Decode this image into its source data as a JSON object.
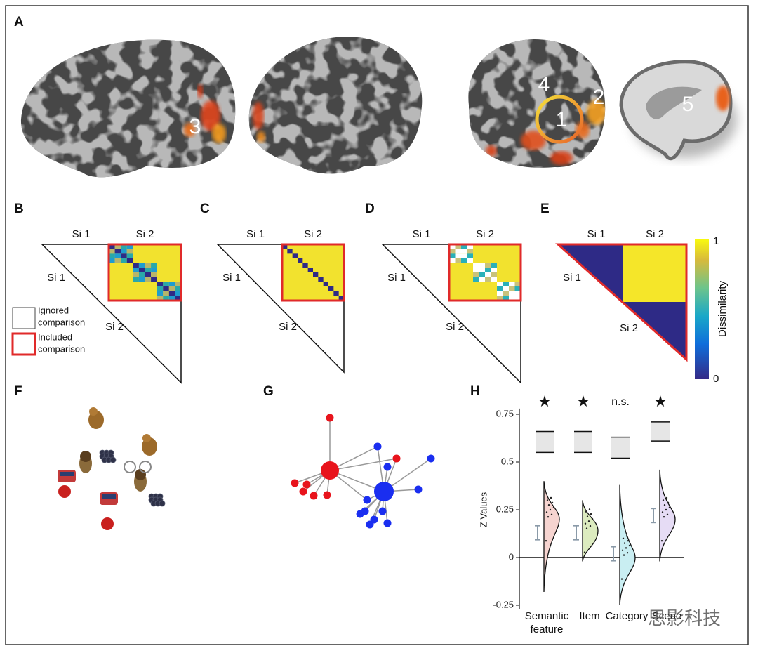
{
  "panels": {
    "A": {
      "letter": "A",
      "labels": [
        "3",
        "4",
        "1",
        "2",
        "5"
      ]
    },
    "B": {
      "letter": "B",
      "top": [
        "Si 1",
        "Si 2"
      ],
      "left": [
        "Si 1",
        "Si 2"
      ]
    },
    "C": {
      "letter": "C",
      "top": [
        "Si 1",
        "Si 2"
      ],
      "left": [
        "Si 1",
        "Si 2"
      ]
    },
    "D": {
      "letter": "D",
      "top": [
        "Si 1",
        "Si 2"
      ],
      "left": [
        "Si 1",
        "Si 2"
      ]
    },
    "E": {
      "letter": "E",
      "top": [
        "Si 1",
        "Si 2"
      ],
      "left": [
        "Si 1",
        "Si 2"
      ],
      "colorbar": {
        "label": "Dissimilarity",
        "ticks": [
          1,
          0
        ]
      }
    },
    "legend": {
      "ignored": [
        "Ignored",
        "comparison"
      ],
      "included": [
        "Included",
        "comparison"
      ]
    },
    "F": {
      "letter": "F"
    },
    "G": {
      "letter": "G"
    },
    "H": {
      "letter": "H",
      "y_label": "Z Values",
      "ylim": [
        -0.27,
        0.78
      ],
      "yticks": [
        0.75,
        0.5,
        0.25,
        0,
        -0.25
      ],
      "categories": [
        [
          "Semantic",
          "feature"
        ],
        [
          "Item"
        ],
        [
          "Category"
        ],
        [
          "Scene"
        ]
      ],
      "significance": [
        "★",
        "★",
        "n.s.",
        "★"
      ],
      "means": [
        0.13,
        0.13,
        0.02,
        0.22
      ],
      "null_lower": [
        0.55,
        0.55,
        0.52,
        0.61
      ],
      "null_upper": [
        0.66,
        0.66,
        0.63,
        0.71
      ]
    }
  },
  "watermark": "思影科技"
}
